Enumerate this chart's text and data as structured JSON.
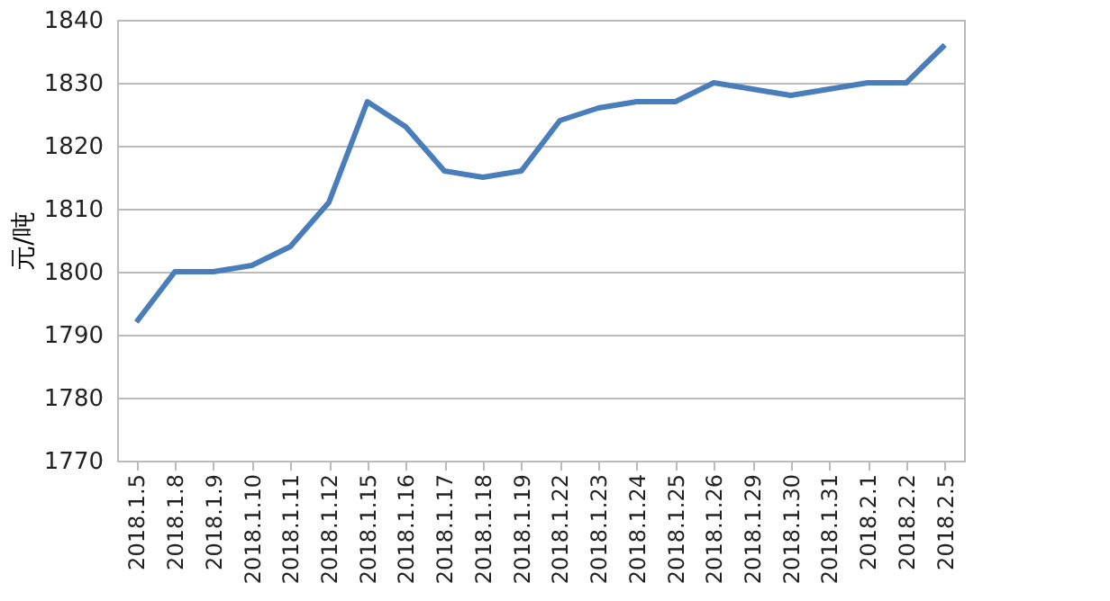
{
  "chart_data": {
    "type": "line",
    "ylabel": "元/吨",
    "categories": [
      "2018.1.5",
      "2018.1.8",
      "2018.1.9",
      "2018.1.10",
      "2018.1.11",
      "2018.1.12",
      "2018.1.15",
      "2018.1.16",
      "2018.1.17",
      "2018.1.18",
      "2018.1.19",
      "2018.1.22",
      "2018.1.23",
      "2018.1.24",
      "2018.1.25",
      "2018.1.26",
      "2018.1.29",
      "2018.1.30",
      "2018.1.31",
      "2018.2.1",
      "2018.2.2",
      "2018.2.5"
    ],
    "series": [
      {
        "color": "#4a7ebb",
        "values": [
          1792,
          1800,
          1800,
          1801,
          1804,
          1811,
          1827,
          1823,
          1816,
          1815,
          1816,
          1824,
          1826,
          1827,
          1827,
          1830,
          1829,
          1828,
          1829,
          1830,
          1830,
          1836
        ]
      }
    ],
    "ylim": [
      1770,
      1840
    ],
    "yticks": [
      1770,
      1780,
      1790,
      1800,
      1810,
      1820,
      1830,
      1840
    ],
    "grid": "y",
    "legend": false,
    "marker": "none",
    "line_style": "solid"
  }
}
